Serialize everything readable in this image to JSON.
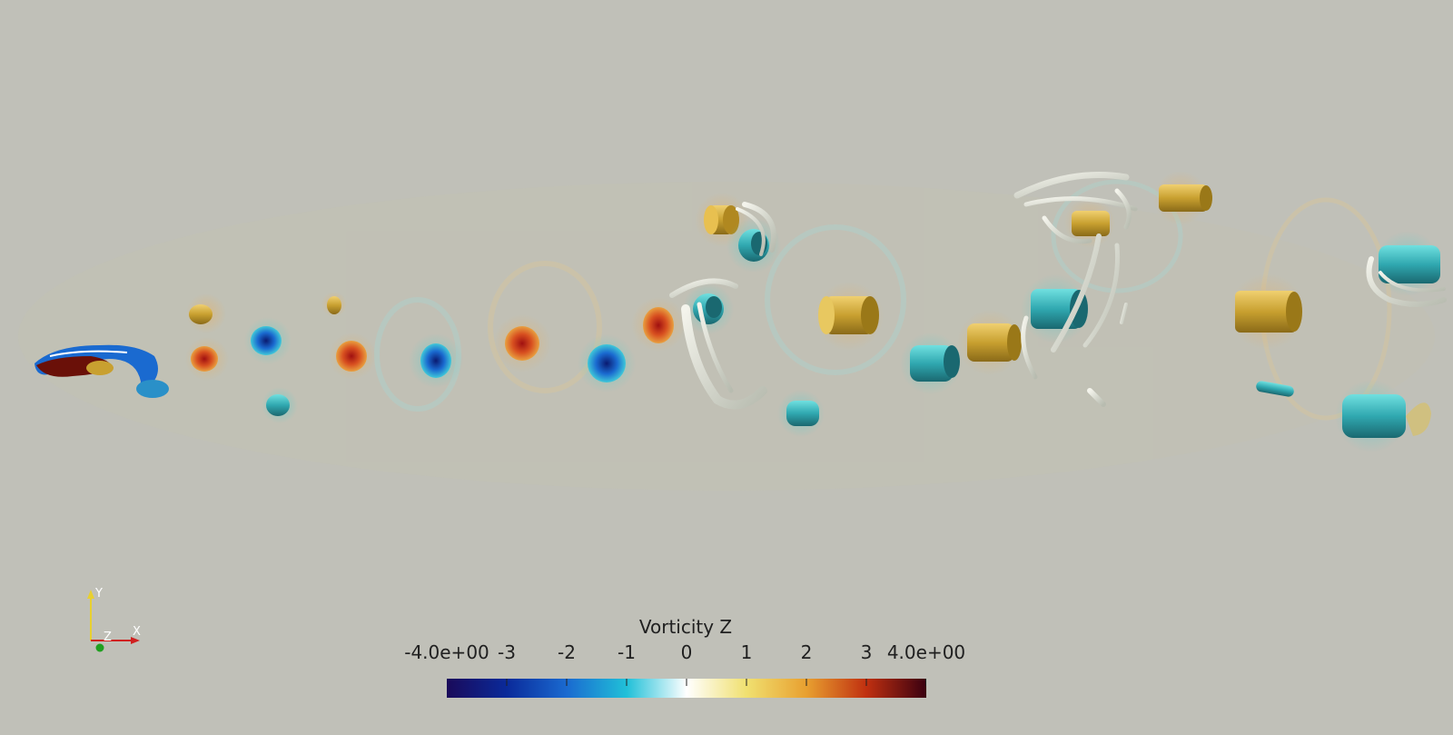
{
  "colorbar": {
    "title": "Vorticity Z",
    "tick_labels": [
      "-4.0e+00",
      "-3",
      "-2",
      "-1",
      "0",
      "1",
      "2",
      "3",
      "4.0e+00"
    ],
    "range": [
      -4.0,
      4.0
    ],
    "colormap": [
      "#1a0a5a",
      "#0a2a9a",
      "#1a6ad0",
      "#20c0d8",
      "#ffffff",
      "#f0e070",
      "#e8a030",
      "#c03010",
      "#3a0010"
    ]
  },
  "axes": {
    "y_label": "Y",
    "z_label": "Z",
    "x_label": "X",
    "y_color": "#e8d030",
    "x_color": "#d02020",
    "z_color": "#20a020"
  },
  "background_color": "#c0c0b8"
}
